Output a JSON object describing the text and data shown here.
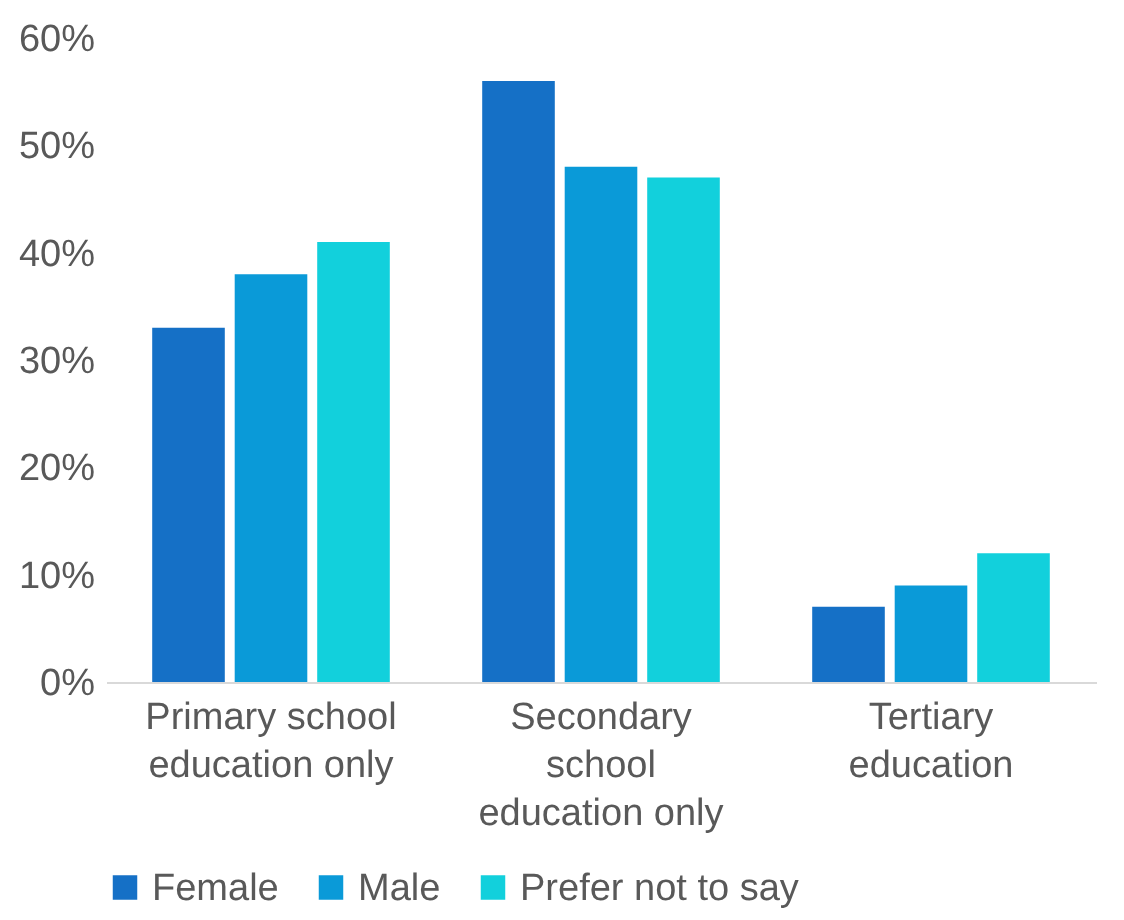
{
  "chart_data": {
    "type": "bar",
    "categories": [
      "Primary school education only",
      "Secondary school education only",
      "Tertiary education"
    ],
    "series": [
      {
        "name": "Female",
        "color": "#1570c6",
        "values": [
          33,
          56,
          7
        ]
      },
      {
        "name": "Male",
        "color": "#0a9ad8",
        "values": [
          38,
          48,
          9
        ]
      },
      {
        "name": "Prefer not to say",
        "color": "#12d0dc",
        "values": [
          41,
          47,
          12
        ]
      }
    ],
    "ylim": [
      0,
      60
    ],
    "yticks": [
      {
        "value": 0,
        "label": "0%"
      },
      {
        "value": 10,
        "label": "10%"
      },
      {
        "value": 20,
        "label": "20%"
      },
      {
        "value": 30,
        "label": "30%"
      },
      {
        "value": 40,
        "label": "40%"
      },
      {
        "value": 50,
        "label": "50%"
      },
      {
        "value": 60,
        "label": "60%"
      }
    ],
    "grid": false,
    "legend": "bottom"
  }
}
